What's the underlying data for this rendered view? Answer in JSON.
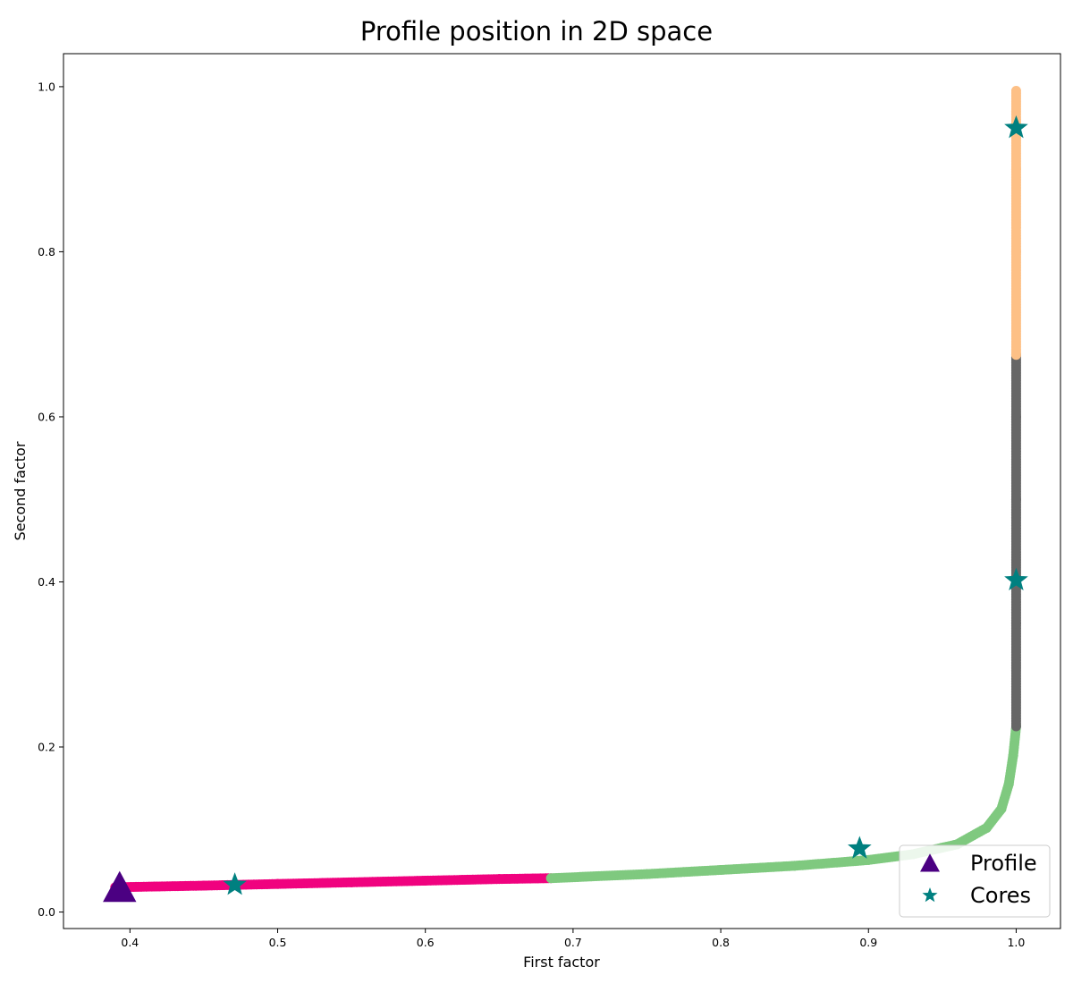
{
  "chart_data": {
    "type": "scatter",
    "title": "Profile position in 2D space",
    "xlabel": "First factor",
    "ylabel": "Second factor",
    "xlim": [
      0.355,
      1.03
    ],
    "ylim": [
      -0.02,
      1.04
    ],
    "xticks": [
      "0.4",
      "0.5",
      "0.6",
      "0.7",
      "0.8",
      "0.9",
      "1.0"
    ],
    "yticks": [
      "0.0",
      "0.2",
      "0.4",
      "0.6",
      "0.8",
      "1.0"
    ],
    "grid": false,
    "legend_position": "lower-right",
    "colors": {
      "pink": "#f0027f",
      "green": "#7fc97f",
      "gray": "#666666",
      "orange": "#fdc086",
      "profile": "#4b0082",
      "cores": "#008080"
    },
    "clusters": [
      {
        "color": "pink",
        "points": [
          [
            0.39,
            0.03
          ],
          [
            0.45,
            0.032
          ],
          [
            0.5,
            0.034
          ],
          [
            0.55,
            0.036
          ],
          [
            0.6,
            0.038
          ],
          [
            0.65,
            0.04
          ],
          [
            0.685,
            0.041
          ]
        ]
      },
      {
        "color": "green",
        "points": [
          [
            0.685,
            0.041
          ],
          [
            0.75,
            0.046
          ],
          [
            0.8,
            0.051
          ],
          [
            0.85,
            0.056
          ],
          [
            0.9,
            0.063
          ],
          [
            0.93,
            0.07
          ],
          [
            0.96,
            0.082
          ],
          [
            0.98,
            0.102
          ],
          [
            0.99,
            0.125
          ],
          [
            0.995,
            0.155
          ],
          [
            0.998,
            0.19
          ],
          [
            1.0,
            0.225
          ]
        ]
      },
      {
        "color": "gray",
        "points": [
          [
            1.0,
            0.225
          ],
          [
            1.0,
            0.35
          ],
          [
            1.0,
            0.5
          ],
          [
            1.0,
            0.6
          ],
          [
            1.0,
            0.675
          ]
        ]
      },
      {
        "color": "orange",
        "points": [
          [
            1.0,
            0.675
          ],
          [
            1.0,
            0.8
          ],
          [
            1.0,
            0.9
          ],
          [
            1.0,
            0.995
          ]
        ]
      }
    ],
    "series": [
      {
        "name": "Profile",
        "marker": "triangle",
        "points": [
          [
            0.393,
            0.028
          ]
        ]
      },
      {
        "name": "Cores",
        "marker": "star",
        "points": [
          [
            0.471,
            0.033
          ],
          [
            0.894,
            0.077
          ],
          [
            1.0,
            0.402
          ],
          [
            1.0,
            0.95
          ]
        ]
      }
    ]
  }
}
